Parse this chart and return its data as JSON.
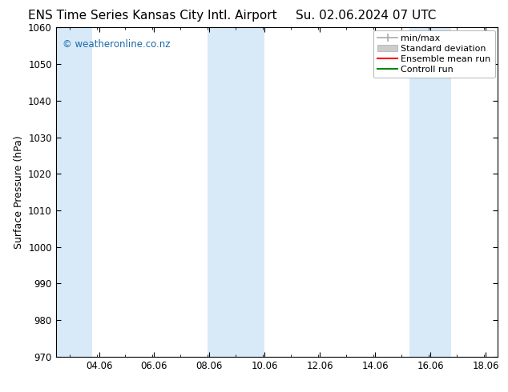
{
  "title_left": "ENS Time Series Kansas City Intl. Airport",
  "title_right": "Su. 02.06.2024 07 UTC",
  "ylabel": "Surface Pressure (hPa)",
  "watermark": "© weatheronline.co.nz",
  "watermark_color": "#1a6aaa",
  "ylim": [
    970,
    1060
  ],
  "yticks": [
    970,
    980,
    990,
    1000,
    1010,
    1020,
    1030,
    1040,
    1050,
    1060
  ],
  "xlim_start": 2.5,
  "xlim_end": 18.5,
  "xtick_labels": [
    "04.06",
    "06.06",
    "08.06",
    "10.06",
    "12.06",
    "14.06",
    "16.06",
    "18.06"
  ],
  "xtick_positions": [
    4.06,
    6.06,
    8.06,
    10.06,
    12.06,
    14.06,
    16.06,
    18.06
  ],
  "shaded_bands": [
    {
      "x_start": 2.5,
      "x_end": 3.8
    },
    {
      "x_start": 8.0,
      "x_end": 10.06
    },
    {
      "x_start": 15.3,
      "x_end": 16.8
    }
  ],
  "shade_color": "#d8eaf8",
  "background_color": "#ffffff",
  "legend_items": [
    {
      "label": "min/max",
      "color": "#aaaaaa",
      "style": "minmax"
    },
    {
      "label": "Standard deviation",
      "color": "#cccccc",
      "style": "fill"
    },
    {
      "label": "Ensemble mean run",
      "color": "#ff0000",
      "style": "line"
    },
    {
      "label": "Controll run",
      "color": "#008800",
      "style": "line"
    }
  ],
  "font_family": "DejaVu Sans",
  "title_fontsize": 11,
  "tick_fontsize": 8.5,
  "label_fontsize": 9,
  "legend_fontsize": 8
}
